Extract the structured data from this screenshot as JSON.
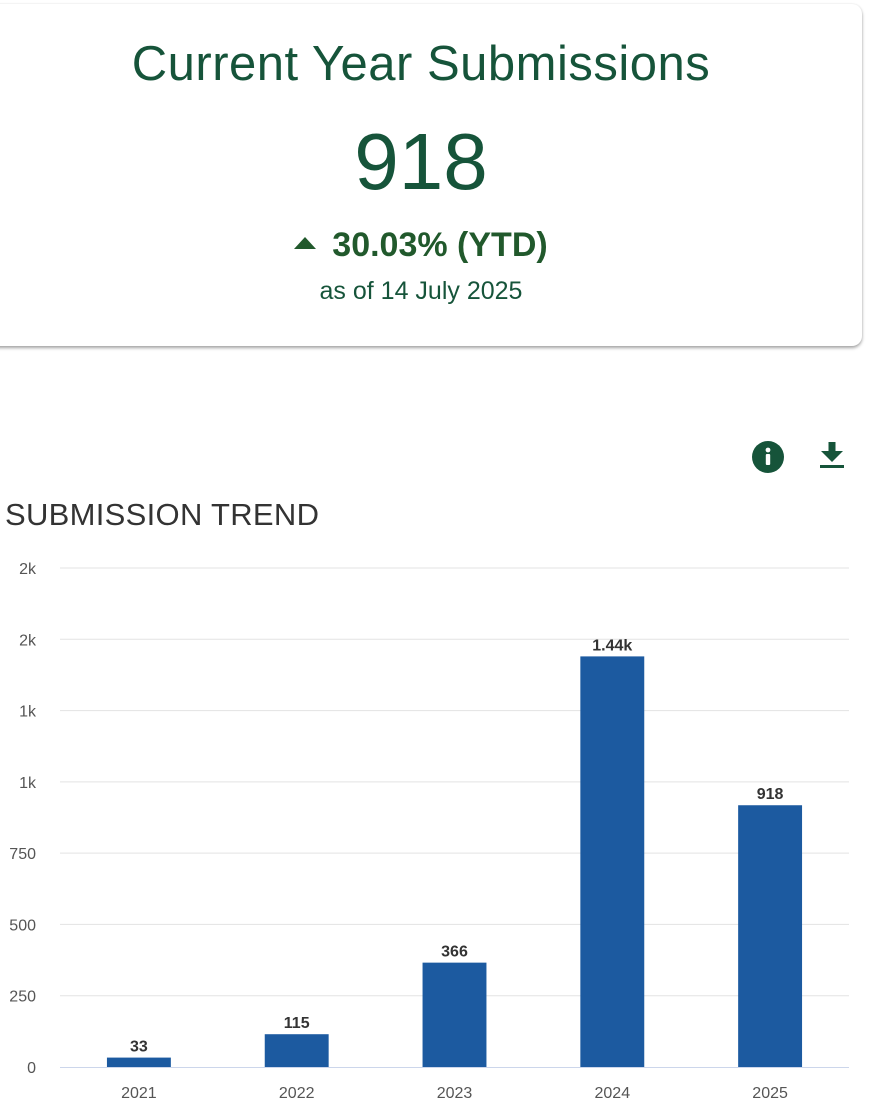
{
  "kpi": {
    "title": "Current Year Submissions",
    "value": "918",
    "change": "30.03% (YTD)",
    "as_of": "as of 14 July 2025",
    "change_direction": "up",
    "color": "#16543a"
  },
  "toolbar": {
    "info_icon": "info-icon",
    "download_icon": "download-icon",
    "icon_color": "#16543a"
  },
  "chart_data": {
    "type": "bar",
    "title": "SUBMISSION TREND",
    "categories": [
      "2021",
      "2022",
      "2023",
      "2024",
      "2025"
    ],
    "values": [
      33,
      115,
      366,
      1440,
      918
    ],
    "data_labels": [
      "33",
      "115",
      "366",
      "1.44k",
      "918"
    ],
    "ylim": [
      0,
      1750
    ],
    "yticks": [
      0,
      250,
      500,
      750,
      1000,
      1250,
      1500,
      1750
    ],
    "ytick_labels": [
      "0",
      "250",
      "500",
      "750",
      "1k",
      "1k",
      "2k",
      "2k"
    ],
    "grid": true,
    "bar_color": "#1c5aa0",
    "xlabel": "",
    "ylabel": ""
  }
}
